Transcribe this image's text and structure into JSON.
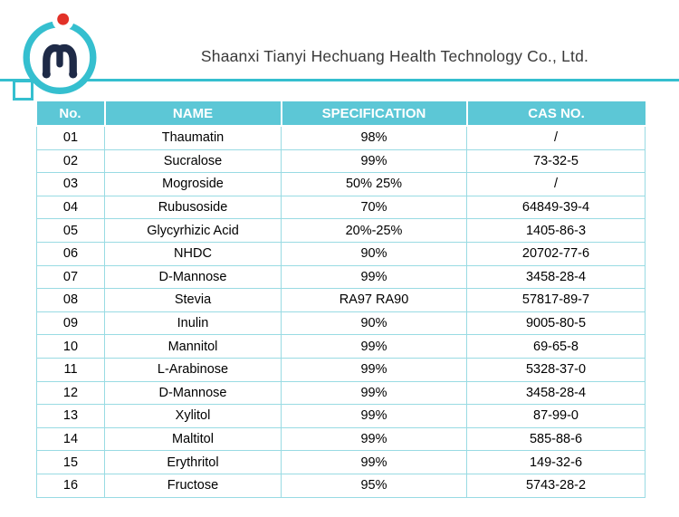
{
  "header": {
    "company_name": "Shaanxi Tianyi Hechuang Health Technology Co., Ltd."
  },
  "logo": {
    "description": "circular teal ring logo with navy abstract plant glyph and red dot"
  },
  "colors": {
    "accent_teal": "#35bfcf",
    "table_header_bg": "#5cc7d6",
    "table_border": "#99dbe3",
    "logo_navy": "#1e2a47",
    "logo_red": "#e23128"
  },
  "table": {
    "columns": [
      "No.",
      "NAME",
      "SPECIFICATION",
      "CAS NO."
    ],
    "rows": [
      [
        "01",
        "Thaumatin",
        "98%",
        "/"
      ],
      [
        "02",
        "Sucralose",
        "99%",
        "73-32-5"
      ],
      [
        "03",
        "Mogroside",
        "50% 25%",
        "/"
      ],
      [
        "04",
        "Rubusoside",
        "70%",
        "64849-39-4"
      ],
      [
        "05",
        "Glycyrhizic Acid",
        "20%-25%",
        "1405-86-3"
      ],
      [
        "06",
        "NHDC",
        "90%",
        "20702-77-6"
      ],
      [
        "07",
        "D-Mannose",
        "99%",
        "3458-28-4"
      ],
      [
        "08",
        "Stevia",
        "RA97 RA90",
        "57817-89-7"
      ],
      [
        "09",
        "Inulin",
        "90%",
        "9005-80-5"
      ],
      [
        "10",
        "Mannitol",
        "99%",
        "69-65-8"
      ],
      [
        "11",
        "L-Arabinose",
        "99%",
        "5328-37-0"
      ],
      [
        "12",
        "D-Mannose",
        "99%",
        "3458-28-4"
      ],
      [
        "13",
        "Xylitol",
        "99%",
        "87-99-0"
      ],
      [
        "14",
        "Maltitol",
        "99%",
        "585-88-6"
      ],
      [
        "15",
        "Erythritol",
        "99%",
        "149-32-6"
      ],
      [
        "16",
        "Fructose",
        "95%",
        "5743-28-2"
      ]
    ]
  }
}
